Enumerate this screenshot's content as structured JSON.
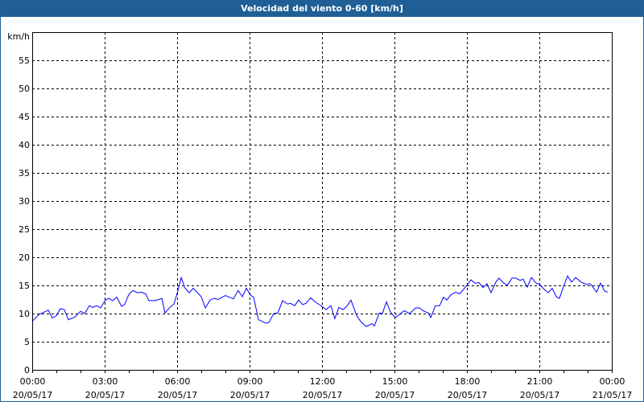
{
  "window": {
    "title": "Velocidad del viento 0-60 [km/h]"
  },
  "chart_data": {
    "type": "line",
    "title": "Velocidad del viento 0-60 [km/h]",
    "ylabel": "km/h",
    "xlabel": "",
    "ylim": [
      0,
      60
    ],
    "xlim_hours": [
      0,
      24
    ],
    "grid": true,
    "y_ticks": [
      "0",
      "5",
      "10",
      "15",
      "20",
      "25",
      "30",
      "35",
      "40",
      "45",
      "50",
      "55"
    ],
    "x_ticks": [
      {
        "time": "00:00",
        "date": "20/05/17"
      },
      {
        "time": "03:00",
        "date": "20/05/17"
      },
      {
        "time": "06:00",
        "date": "20/05/17"
      },
      {
        "time": "09:00",
        "date": "20/05/17"
      },
      {
        "time": "12:00",
        "date": "20/05/17"
      },
      {
        "time": "15:00",
        "date": "20/05/17"
      },
      {
        "time": "18:00",
        "date": "20/05/17"
      },
      {
        "time": "21:00",
        "date": "20/05/17"
      },
      {
        "time": "00:00",
        "date": "21/05/17"
      }
    ],
    "series": [
      {
        "name": "Velocidad del viento",
        "color": "#0000ff",
        "x_hours": [
          0,
          0.27,
          0.67,
          0.83,
          1,
          1.17,
          1.33,
          1.5,
          1.77,
          2,
          2.17,
          2.37,
          2.5,
          2.67,
          2.83,
          3.03,
          3.17,
          3.33,
          3.5,
          3.7,
          3.83,
          4,
          4.17,
          4.37,
          4.53,
          4.7,
          4.83,
          5.1,
          5.37,
          5.5,
          5.7,
          5.87,
          6.03,
          6.17,
          6.33,
          6.5,
          6.67,
          7,
          7.17,
          7.37,
          7.53,
          7.7,
          8,
          8.33,
          8.53,
          8.7,
          8.87,
          9.03,
          9.17,
          9.37,
          9.67,
          9.8,
          10,
          10.17,
          10.37,
          10.57,
          10.7,
          10.87,
          11.03,
          11.2,
          11.33,
          11.53,
          11.73,
          11.93,
          12.17,
          12.37,
          12.53,
          12.7,
          12.87,
          13.03,
          13.2,
          13.43,
          13.6,
          13.83,
          14.07,
          14.17,
          14.37,
          14.5,
          14.67,
          14.83,
          15.03,
          15.2,
          15.4,
          15.63,
          15.87,
          16.03,
          16.23,
          16.4,
          16.5,
          16.7,
          16.87,
          17.03,
          17.17,
          17.33,
          17.53,
          17.7,
          18,
          18.17,
          18.33,
          18.5,
          18.67,
          18.83,
          19,
          19.2,
          19.33,
          19.5,
          19.67,
          19.87,
          20.03,
          20.2,
          20.33,
          20.5,
          20.67,
          20.87,
          21,
          21.2,
          21.37,
          21.53,
          21.7,
          21.83,
          22,
          22.17,
          22.33,
          22.5,
          22.73,
          22.93,
          23.1,
          23.2,
          23.37,
          23.53,
          23.7,
          23.83
        ],
        "values": [
          8.6,
          9.8,
          10.6,
          9.2,
          9.6,
          10.9,
          10.7,
          8.9,
          9.4,
          10.4,
          10,
          11.4,
          11.1,
          11.4,
          11,
          12.4,
          12.7,
          12.3,
          12.9,
          11.3,
          11.6,
          13.4,
          14.1,
          13.7,
          13.8,
          13.5,
          12.3,
          12.3,
          12.7,
          10.1,
          11.1,
          11.7,
          14,
          16.4,
          14.5,
          13.7,
          14.5,
          13,
          11,
          12.4,
          12.7,
          12.5,
          13.2,
          12.6,
          14.1,
          13,
          14.5,
          13.3,
          12.9,
          8.9,
          8.3,
          8.4,
          10,
          10.1,
          12.3,
          11.7,
          11.8,
          11.4,
          12.4,
          11.6,
          11.8,
          12.8,
          12,
          11.5,
          10.7,
          11.4,
          9.1,
          11.1,
          10.7,
          11.3,
          12.4,
          9.7,
          8.6,
          7.7,
          8.2,
          7.8,
          10.1,
          10,
          12.1,
          10.3,
          9.3,
          9.8,
          10.5,
          10,
          11,
          11,
          10.4,
          10.1,
          9.3,
          11.4,
          11.4,
          12.9,
          12.4,
          13.3,
          13.8,
          13.5,
          15,
          16,
          15.4,
          15.5,
          14.6,
          15.3,
          13.7,
          15.6,
          16.3,
          15.5,
          15,
          16.3,
          16.3,
          15.9,
          16.1,
          14.7,
          16.4,
          15.4,
          15.2,
          14.3,
          13.7,
          14.5,
          13,
          12.7,
          14.8,
          16.7,
          15.6,
          16.4,
          15.6,
          15.2,
          15.3,
          14.8,
          13.8,
          15.4,
          14,
          13.8
        ]
      }
    ]
  }
}
